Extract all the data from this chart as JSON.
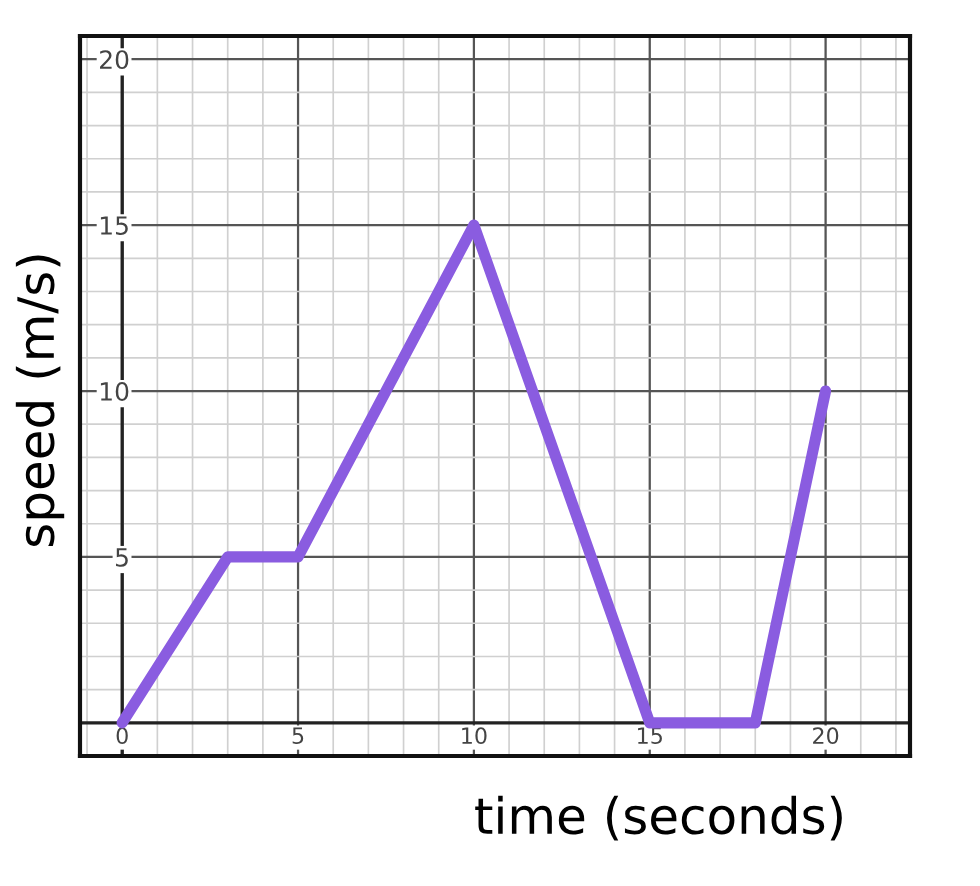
{
  "chart_data": {
    "type": "line",
    "xlabel": "time (seconds)",
    "ylabel": "speed (m/s)",
    "x": [
      0,
      3,
      5,
      10,
      15,
      18,
      20
    ],
    "series": [
      {
        "color": "#8a5ce0",
        "values": [
          0,
          5,
          5,
          15,
          0,
          0,
          10
        ]
      }
    ],
    "xlim": [
      -1.2,
      22.4
    ],
    "ylim": [
      -1,
      20.7
    ],
    "xticks": [
      0,
      5,
      10,
      15,
      20
    ],
    "yticks": [
      5,
      10,
      15,
      20
    ],
    "grid": true,
    "marker": "none",
    "line_style": "solid"
  }
}
